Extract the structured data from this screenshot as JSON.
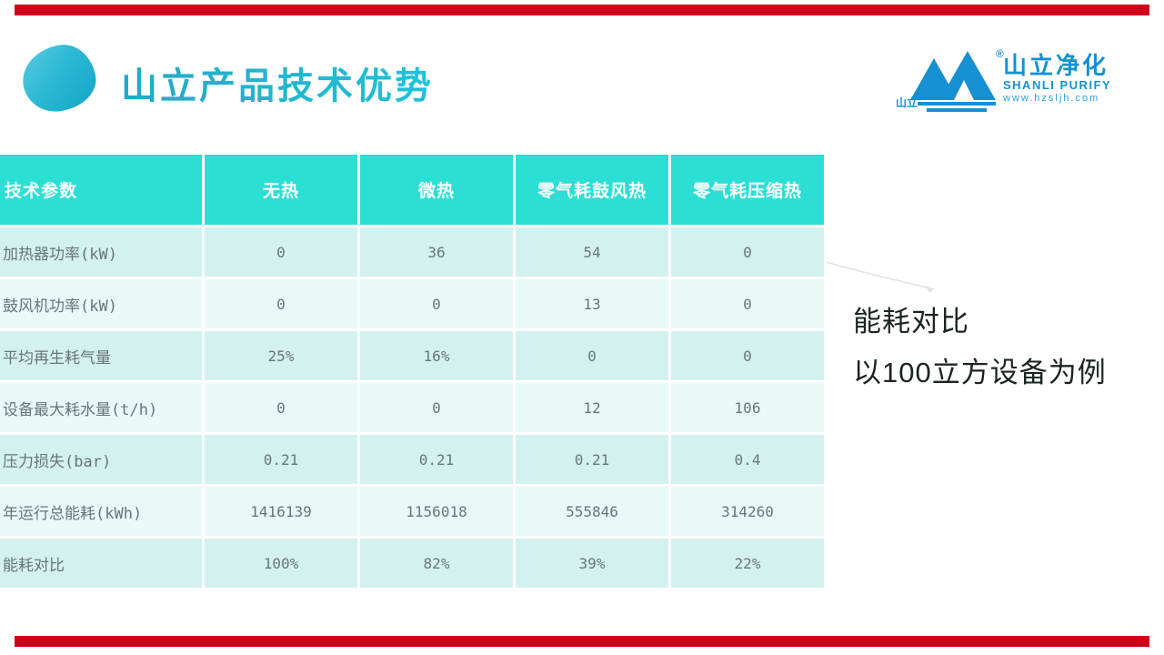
{
  "slide": {
    "title": "山立产品技术优势",
    "annotation": {
      "line1": "能耗对比",
      "line2": "以100立方设备为例"
    }
  },
  "logo": {
    "mark_text": "山立",
    "registered": "®",
    "name_cn": "山立净化",
    "name_en": "SHANLI PURIFY",
    "website": "www.hzsljh.com"
  },
  "table": {
    "columns": [
      "技术参数",
      "无热",
      "微热",
      "零气耗鼓风热",
      "零气耗压缩热"
    ],
    "rows": [
      {
        "label": "加热器功率(kW)",
        "values": [
          "0",
          "36",
          "54",
          "0"
        ]
      },
      {
        "label": "鼓风机功率(kW)",
        "values": [
          "0",
          "0",
          "13",
          "0"
        ]
      },
      {
        "label": "平均再生耗气量",
        "values": [
          "25%",
          "16%",
          "0",
          "0"
        ]
      },
      {
        "label": "设备最大耗水量(t/h)",
        "values": [
          "0",
          "0",
          "12",
          "106"
        ]
      },
      {
        "label": "压力损失(bar)",
        "values": [
          "0.21",
          "0.21",
          "0.21",
          "0.4"
        ]
      },
      {
        "label": "年运行总能耗(kWh)",
        "values": [
          "1416139",
          "1156018",
          "555846",
          "314260"
        ]
      },
      {
        "label": "能耗对比",
        "values": [
          "100%",
          "82%",
          "39%",
          "22%"
        ]
      }
    ]
  },
  "colors": {
    "accent_red": "#d0021b",
    "header_teal": "#2bdfd5",
    "row_odd": "#d3f1ee",
    "row_even": "#e9f9f8",
    "title_teal": "#1ab2cd",
    "logo_blue": "#1590d3",
    "body_text": "#677777",
    "annotation_text": "#1a2421"
  }
}
